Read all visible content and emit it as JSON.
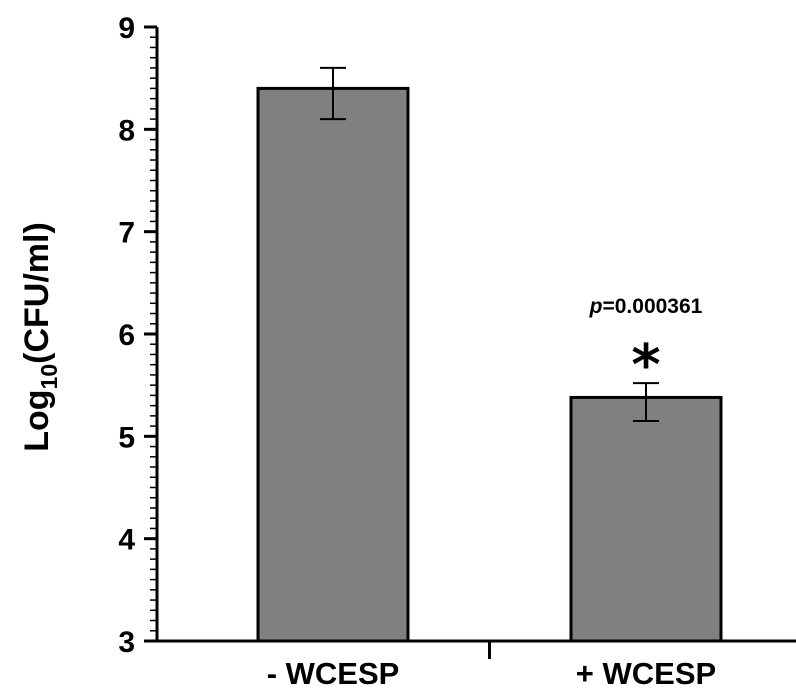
{
  "chart_data": {
    "type": "bar",
    "title": "",
    "xlabel": "",
    "ylabel": {
      "prefix": "Log",
      "subscript": "10",
      "suffix": "(CFU/ml)"
    },
    "categories": [
      "- WCESP",
      "+ WCESP"
    ],
    "values": [
      8.4,
      5.38
    ],
    "error_low": [
      8.1,
      5.15
    ],
    "error_high": [
      8.6,
      5.52
    ],
    "ylim": [
      3,
      9
    ],
    "yticks": [
      3,
      4,
      5,
      6,
      7,
      8,
      9
    ],
    "minor_ticks_per_major": 10,
    "grid": false,
    "bar_color": "#808080",
    "annotations": [
      {
        "category_index": 1,
        "p_label": "p",
        "p_value": "=0.000361",
        "symbol": "*"
      }
    ]
  }
}
